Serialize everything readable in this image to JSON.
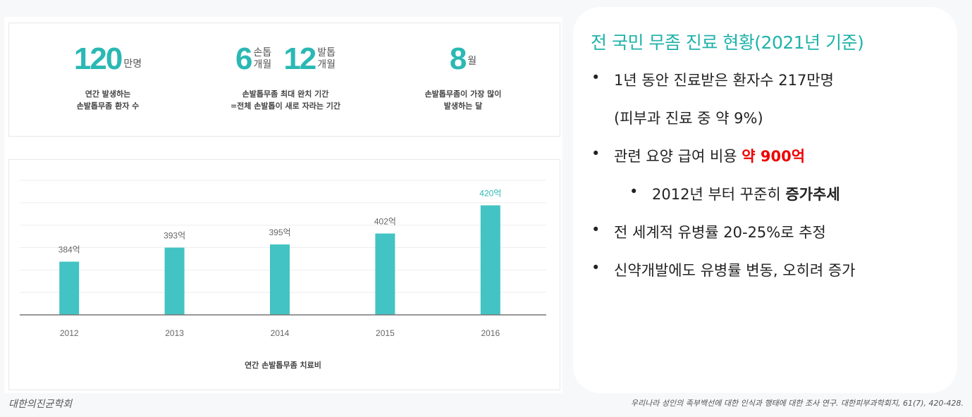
{
  "stats": [
    {
      "number": "120",
      "unit": "만명",
      "desc1": "연간 발생하는",
      "desc2": "손발톱무좀 환자 수"
    },
    {
      "number_a": "6",
      "unit_a1": "손톱",
      "unit_a2": "개월",
      "number_b": "12",
      "unit_b1": "발톱",
      "unit_b2": "개월",
      "desc1": "손발톱무좀 최대 완치 기간",
      "desc2": "=전체 손발톱이 새로 자라는 기간"
    },
    {
      "number": "8",
      "unit": "월",
      "desc1": "손발톱무좀이 가장 많이",
      "desc2": "발생하는 달"
    }
  ],
  "chart_data": {
    "type": "bar",
    "title": "연간 손발톱무좀 치료비",
    "categories": [
      "2012",
      "2013",
      "2014",
      "2015",
      "2016"
    ],
    "values": [
      384,
      393,
      395,
      402,
      420
    ],
    "labels": [
      "384억",
      "393억",
      "395억",
      "402억",
      "420억"
    ],
    "ylim": [
      350,
      436
    ],
    "grid": true,
    "bar_color": "#43c3c3",
    "highlight_color": "#2bb8b4"
  },
  "credit_left": "대한의진균학회",
  "card": {
    "title": "전 국민 무좀 진료 현황(2021년 기준)",
    "b1": "1년 동안 진료받은 환자수 217만명",
    "b1b": "(피부과 진료 중 약 9%)",
    "b2": "관련 요양 급여 비용 ",
    "b2r": "약 900억",
    "b3": "2012년 부터 꾸준히 ",
    "b3b": "증가추세",
    "b4": "전 세계적 유병률 20-25%로 추정",
    "b5": "신약개발에도 유병률 변동, 오히려 증가",
    "bullet": "•"
  },
  "credit_right": "우리나라 성인의 족부백선에 대한 인식과 행태에 대한 조사 연구. 대한피부과학회지, 61(7), 420-428."
}
